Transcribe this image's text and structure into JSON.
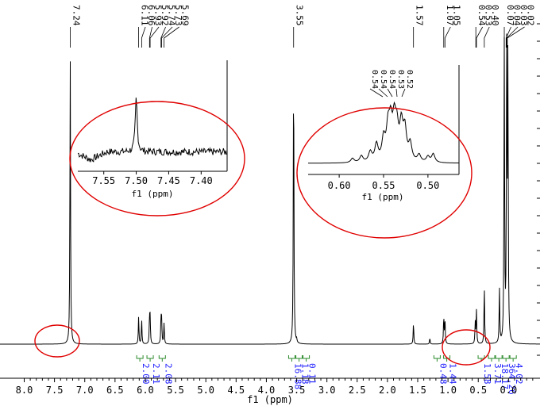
{
  "chart_data": {
    "type": "line",
    "xlabel": "f1 (ppm)",
    "xlim": [
      8.4,
      -0.52
    ],
    "x_reversed": true,
    "x_ticks": [
      "8.0",
      "7.5",
      "7.0",
      "6.5",
      "6.0",
      "5.5",
      "5.0",
      "4.5",
      "4.0",
      "3.5",
      "3.0",
      "2.5",
      "2.0",
      "1.5",
      "1.0",
      "0.5",
      "0.0"
    ],
    "peak_labels": [
      {
        "x": 7.24,
        "label": "7.24"
      },
      {
        "x": 6.11,
        "label": "6.11"
      },
      {
        "x": 6.06,
        "label": "6.06"
      },
      {
        "x": 5.93,
        "label": "5.93"
      },
      {
        "x": 5.92,
        "label": "5.92"
      },
      {
        "x": 5.74,
        "label": "5.74"
      },
      {
        "x": 5.73,
        "label": "5.73"
      },
      {
        "x": 5.69,
        "label": "5.69"
      },
      {
        "x": 3.55,
        "label": "3.55"
      },
      {
        "x": 1.57,
        "label": "1.57"
      },
      {
        "x": 1.07,
        "label": "1.07"
      },
      {
        "x": 1.05,
        "label": "1.05"
      },
      {
        "x": 0.54,
        "label": "0.54"
      },
      {
        "x": 0.53,
        "label": "0.53"
      },
      {
        "x": 0.4,
        "label": "0.40"
      },
      {
        "x": 0.07,
        "label": "0.07"
      },
      {
        "x": 0.04,
        "label": "0.04"
      },
      {
        "x": 0.03,
        "label": "0.03"
      },
      {
        "x": 0.02,
        "label": "0.02"
      }
    ],
    "peaks": [
      {
        "x": 7.24,
        "h": 0.95
      },
      {
        "x": 6.11,
        "h": 0.09
      },
      {
        "x": 6.06,
        "h": 0.08
      },
      {
        "x": 5.93,
        "h": 0.085
      },
      {
        "x": 5.92,
        "h": 0.08
      },
      {
        "x": 5.74,
        "h": 0.085
      },
      {
        "x": 5.73,
        "h": 0.07
      },
      {
        "x": 5.69,
        "h": 0.07
      },
      {
        "x": 3.55,
        "h": 0.95
      },
      {
        "x": 3.5,
        "h": 0.01
      },
      {
        "x": 1.57,
        "h": 0.07
      },
      {
        "x": 1.3,
        "h": 0.02
      },
      {
        "x": 1.07,
        "h": 0.09
      },
      {
        "x": 1.05,
        "h": 0.08
      },
      {
        "x": 0.55,
        "h": 0.07
      },
      {
        "x": 0.53,
        "h": 0.11
      },
      {
        "x": 0.4,
        "h": 0.19
      },
      {
        "x": 0.15,
        "h": 0.18
      },
      {
        "x": 0.07,
        "h": 0.98
      },
      {
        "x": 0.03,
        "h": 0.97
      },
      {
        "x": 0.01,
        "h": 0.92
      }
    ],
    "integrals": [
      {
        "x": 6.09,
        "value": "2.00"
      },
      {
        "x": 5.92,
        "value": "2.11"
      },
      {
        "x": 5.72,
        "value": "2.08"
      },
      {
        "x": 3.58,
        "value": "16.88"
      },
      {
        "x": 3.46,
        "value": "1.18"
      },
      {
        "x": 3.38,
        "value": "0.11"
      },
      {
        "x": 1.18,
        "value": "0.48"
      },
      {
        "x": 1.02,
        "value": "1.44"
      },
      {
        "x": 0.45,
        "value": "1.58"
      },
      {
        "x": 0.28,
        "value": "3.71"
      },
      {
        "x": 0.16,
        "value": "18.17"
      },
      {
        "x": 0.06,
        "value": "364.26"
      },
      {
        "x": -0.02,
        "value": "4.02"
      }
    ],
    "inset_1": {
      "xlabel": "f1 (ppm)",
      "xlim": [
        7.59,
        7.36
      ],
      "x_ticks": [
        "7.55",
        "7.50",
        "7.45",
        "7.40"
      ],
      "main_peak": 7.5
    },
    "inset_2": {
      "xlabel": "f1 (ppm)",
      "xlim": [
        0.635,
        0.465
      ],
      "x_ticks": [
        "0.60",
        "0.55",
        "0.50"
      ],
      "peak_labels": [
        "0.54",
        "0.54",
        "0.54",
        "0.53",
        "0.52"
      ]
    },
    "highlight_color": "#e00000",
    "integral_color": "#1a1aff"
  }
}
